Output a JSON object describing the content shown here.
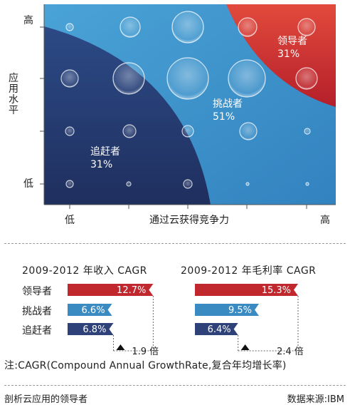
{
  "chart_data": [
    {
      "type": "scatter",
      "y_axis": {
        "label": "应用水平",
        "ticks": [
          "高",
          "低"
        ]
      },
      "x_axis": {
        "label": "通过云获得竞争力",
        "ticks": [
          "低",
          "高"
        ]
      },
      "regions": [
        {
          "name": "领导者",
          "percent": "31%",
          "color": "#cf2e2e"
        },
        {
          "name": "挑战者",
          "percent": "51%",
          "color": "#3d8fc6"
        },
        {
          "name": "追赶者",
          "percent": "31%",
          "color": "#263a6e"
        }
      ]
    },
    {
      "type": "bar",
      "title": "2009-2012 年收入 CAGR",
      "categories": [
        "领导者",
        "挑战者",
        "追赶者"
      ],
      "values": [
        12.7,
        6.6,
        6.8
      ],
      "value_labels": [
        "12.7%",
        "6.6%",
        "6.8%"
      ],
      "xlim": [
        0,
        15.3
      ],
      "multiple_label": "1.9 倍"
    },
    {
      "type": "bar",
      "title": "2009-2012 年毛利率 CAGR",
      "categories": [
        "领导者",
        "挑战者",
        "追赶者"
      ],
      "values": [
        15.3,
        9.5,
        6.4
      ],
      "value_labels": [
        "15.3%",
        "9.5%",
        "6.4%"
      ],
      "xlim": [
        0,
        15.3
      ],
      "multiple_label": "2.4 倍"
    }
  ],
  "note": "注:CAGR(Compound Annual GrowthRate,复合年均增长率)",
  "caption": "剖析云应用的领导者",
  "source": "数据来源:IBM",
  "colors": {
    "leader": "#c0282d",
    "challenger": "#3b8bc3",
    "chaser": "#2e4178"
  }
}
